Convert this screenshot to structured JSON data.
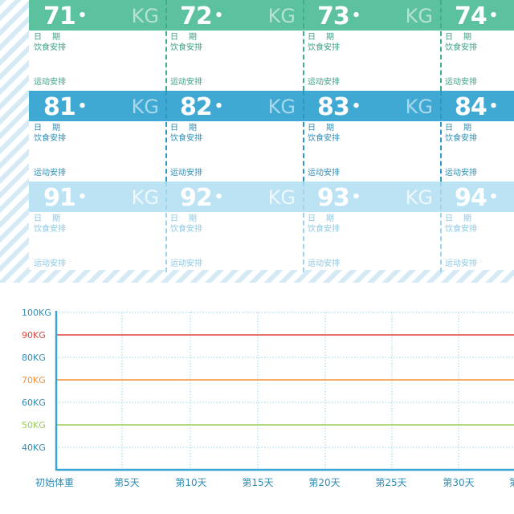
{
  "tracker": {
    "rows": [
      {
        "band_color": "#5cc19e",
        "cells": [
          {
            "num": "71",
            "kg": "KG"
          },
          {
            "num": "72",
            "kg": "KG"
          },
          {
            "num": "73",
            "kg": "KG"
          },
          {
            "num": "74",
            "kg": ""
          }
        ]
      },
      {
        "band_color": "#3fa9d4",
        "cells": [
          {
            "num": "81",
            "kg": "KG"
          },
          {
            "num": "82",
            "kg": "KG"
          },
          {
            "num": "83",
            "kg": "KG"
          },
          {
            "num": "84",
            "kg": ""
          }
        ]
      },
      {
        "band_color": "#bce3f4",
        "cells": [
          {
            "num": "91",
            "kg": "KG"
          },
          {
            "num": "92",
            "kg": "KG"
          },
          {
            "num": "93",
            "kg": "KG"
          },
          {
            "num": "94",
            "kg": ""
          }
        ]
      }
    ],
    "date_label": "日期",
    "diet_label": "饮食安排",
    "exercise_label": "运动安排"
  },
  "chart_data": {
    "type": "line",
    "y_ticks": [
      "100KG",
      "90KG",
      "80KG",
      "70KG",
      "60KG",
      "50KG",
      "40KG"
    ],
    "y_values": [
      100,
      90,
      80,
      70,
      60,
      50,
      40
    ],
    "x_ticks": [
      "初始体重",
      "第5天",
      "第10天",
      "第15天",
      "第20天",
      "第25天",
      "第30天",
      "第"
    ],
    "highlight_lines": [
      {
        "value": 90,
        "color": "#e0453f"
      },
      {
        "value": 70,
        "color": "#f3923b"
      },
      {
        "value": 50,
        "color": "#9ccc54"
      }
    ],
    "ylim": [
      35,
      100
    ],
    "colors": {
      "axis": "#3aa6d6",
      "grid": "#9fd2ea",
      "tick": "#2f8db6"
    }
  }
}
